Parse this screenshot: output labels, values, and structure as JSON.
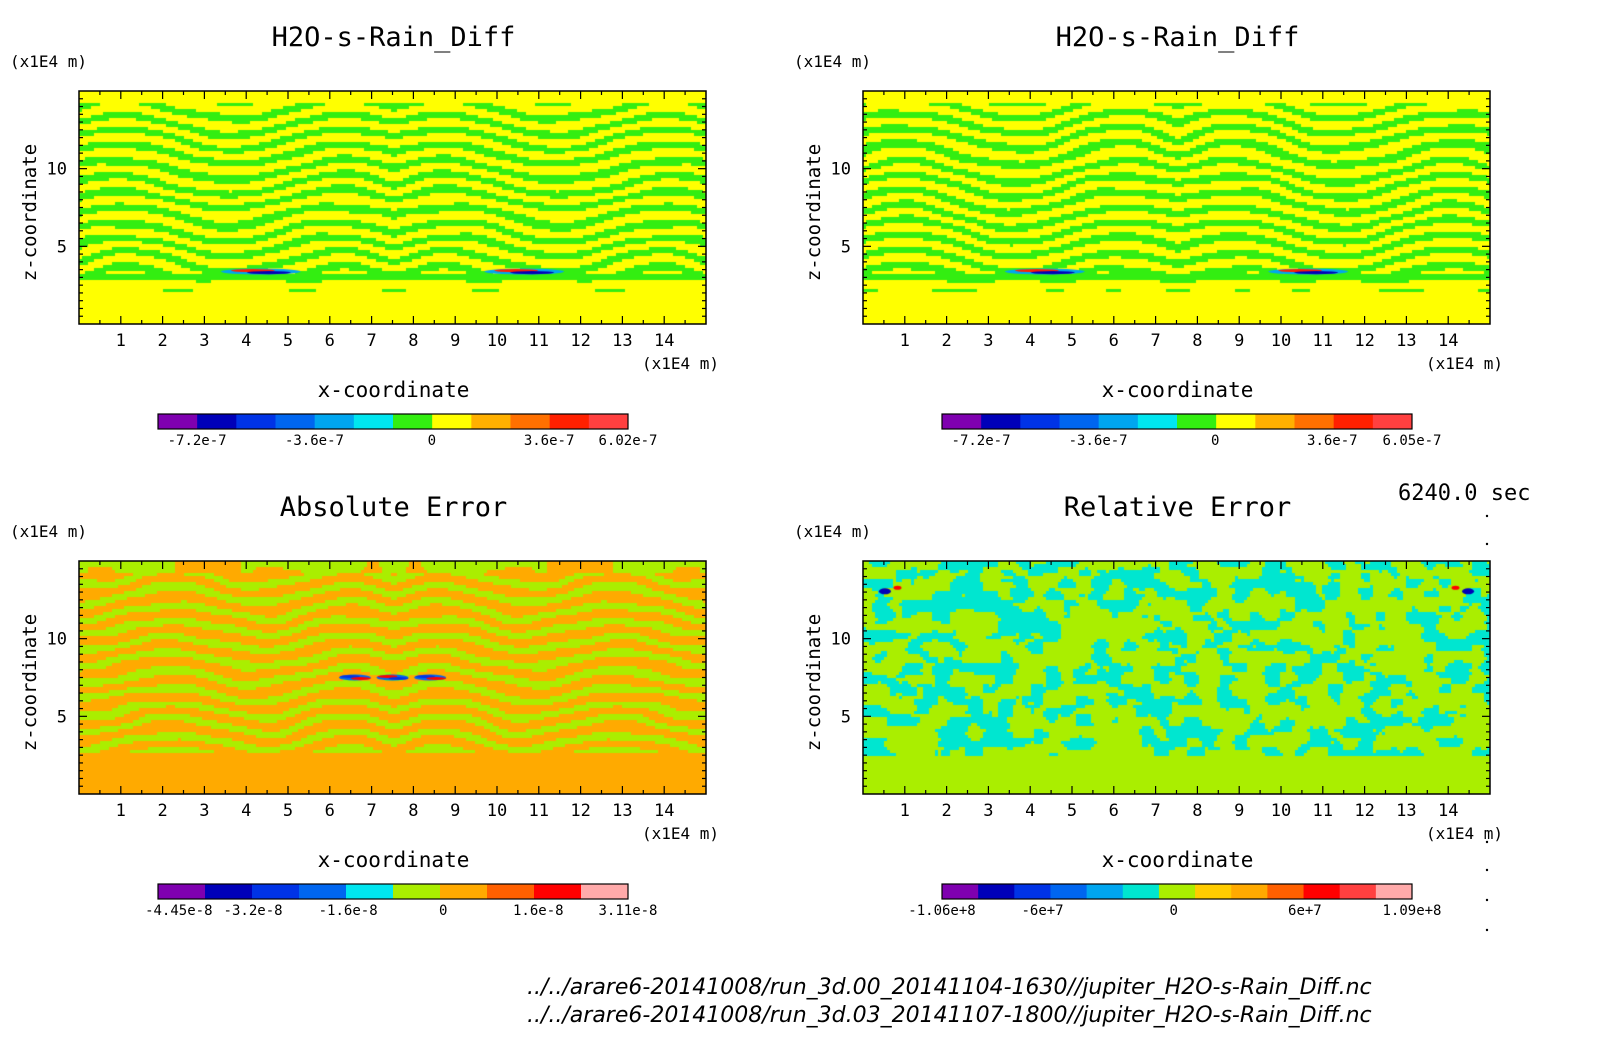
{
  "time_label": "6240.0 sec",
  "file_paths": [
    "../../arare6-20141008/run_3d.00_20141104-1630//jupiter_H2O-s-Rain_Diff.nc",
    "../../arare6-20141008/run_3d.03_20141107-1800//jupiter_H2O-s-Rain_Diff.nc"
  ],
  "chart_data": [
    {
      "type": "heatmap",
      "title": "H2O-s-Rain_Diff",
      "xlabel": "x-coordinate",
      "ylabel": "z-coordinate",
      "x_unit": "(x1E4 m)",
      "y_unit": "(x1E4 m)",
      "xlim": [
        0,
        15
      ],
      "ylim": [
        0,
        15
      ],
      "x_ticks": [
        1,
        2,
        3,
        4,
        5,
        6,
        7,
        8,
        9,
        10,
        11,
        12,
        13,
        14
      ],
      "y_ticks": [
        5,
        10
      ],
      "colorbar": {
        "colors": [
          "#7f00b0",
          "#0000b8",
          "#0033e6",
          "#0066f0",
          "#00a6f0",
          "#00e6f0",
          "#33ee11",
          "#ffff00",
          "#ffb000",
          "#ff7000",
          "#ff2000",
          "#ff4040"
        ],
        "labels": [
          "-7.2e-7",
          "-3.6e-7",
          "0",
          "3.6e-7",
          "6.02e-7"
        ],
        "label_positions": [
          -7.2e-07,
          -3.6e-07,
          0,
          3.6e-07,
          6.02e-07
        ],
        "range": [
          -8.4e-07,
          6.02e-07
        ]
      },
      "field_colors": [
        "#33ee11",
        "#ffff00"
      ],
      "feature_colors": [
        "#0000b8",
        "#ff2000"
      ]
    },
    {
      "type": "heatmap",
      "title": "H2O-s-Rain_Diff",
      "xlabel": "x-coordinate",
      "ylabel": "z-coordinate",
      "x_unit": "(x1E4 m)",
      "y_unit": "(x1E4 m)",
      "xlim": [
        0,
        15
      ],
      "ylim": [
        0,
        15
      ],
      "x_ticks": [
        1,
        2,
        3,
        4,
        5,
        6,
        7,
        8,
        9,
        10,
        11,
        12,
        13,
        14
      ],
      "y_ticks": [
        5,
        10
      ],
      "colorbar": {
        "colors": [
          "#7f00b0",
          "#0000b8",
          "#0033e6",
          "#0066f0",
          "#00a6f0",
          "#00e6f0",
          "#33ee11",
          "#ffff00",
          "#ffb000",
          "#ff7000",
          "#ff2000",
          "#ff4040"
        ],
        "labels": [
          "-7.2e-7",
          "-3.6e-7",
          "0",
          "3.6e-7",
          "6.05e-7"
        ],
        "label_positions": [
          -7.2e-07,
          -3.6e-07,
          0,
          3.6e-07,
          6.05e-07
        ],
        "range": [
          -8.4e-07,
          6.05e-07
        ]
      },
      "field_colors": [
        "#33ee11",
        "#ffff00"
      ],
      "feature_colors": [
        "#0000b8",
        "#ff2000"
      ]
    },
    {
      "type": "heatmap",
      "title": "Absolute Error",
      "xlabel": "x-coordinate",
      "ylabel": "z-coordinate",
      "x_unit": "(x1E4 m)",
      "y_unit": "(x1E4 m)",
      "xlim": [
        0,
        15
      ],
      "ylim": [
        0,
        15
      ],
      "x_ticks": [
        1,
        2,
        3,
        4,
        5,
        6,
        7,
        8,
        9,
        10,
        11,
        12,
        13,
        14
      ],
      "y_ticks": [
        5,
        10
      ],
      "colorbar": {
        "colors": [
          "#7f00b0",
          "#0000b8",
          "#0033e6",
          "#0066f0",
          "#00e6f0",
          "#aaee00",
          "#ffaa00",
          "#ff6000",
          "#ff0000",
          "#ffaaaa"
        ],
        "labels": [
          "-4.45e-8",
          "-3.2e-8",
          "-1.6e-8",
          "0",
          "1.6e-8",
          "3.11e-8"
        ],
        "label_positions": [
          -4.45e-08,
          -3.2e-08,
          -1.6e-08,
          0,
          1.6e-08,
          3.11e-08
        ],
        "range": [
          -4.8e-08,
          3.11e-08
        ]
      },
      "field_colors": [
        "#aaee00",
        "#ffaa00"
      ],
      "feature_colors": [
        "#0033e6",
        "#ff0000"
      ]
    },
    {
      "type": "heatmap",
      "title": "Relative Error",
      "xlabel": "x-coordinate",
      "ylabel": "z-coordinate",
      "x_unit": "(x1E4 m)",
      "y_unit": "(x1E4 m)",
      "xlim": [
        0,
        15
      ],
      "ylim": [
        0,
        15
      ],
      "x_ticks": [
        1,
        2,
        3,
        4,
        5,
        6,
        7,
        8,
        9,
        10,
        11,
        12,
        13,
        14
      ],
      "y_ticks": [
        5,
        10
      ],
      "colorbar": {
        "colors": [
          "#7f00b0",
          "#0000b8",
          "#0033e6",
          "#0066f0",
          "#00a6f0",
          "#00e6d0",
          "#aaee00",
          "#ffcc00",
          "#ffaa00",
          "#ff6000",
          "#ff0000",
          "#ff4040",
          "#ffaaaa"
        ],
        "labels": [
          "-1.06e+8",
          "-6e+7",
          "0",
          "6e+7",
          "1.09e+8"
        ],
        "label_positions": [
          -106000000.0,
          -60000000.0,
          0,
          60000000.0,
          109000000.0
        ],
        "range": [
          -106000000.0,
          109000000.0
        ]
      },
      "field_colors": [
        "#aaee00",
        "#00e6d0"
      ],
      "feature_colors": [
        "#0000b8",
        "#ff0000"
      ]
    }
  ]
}
